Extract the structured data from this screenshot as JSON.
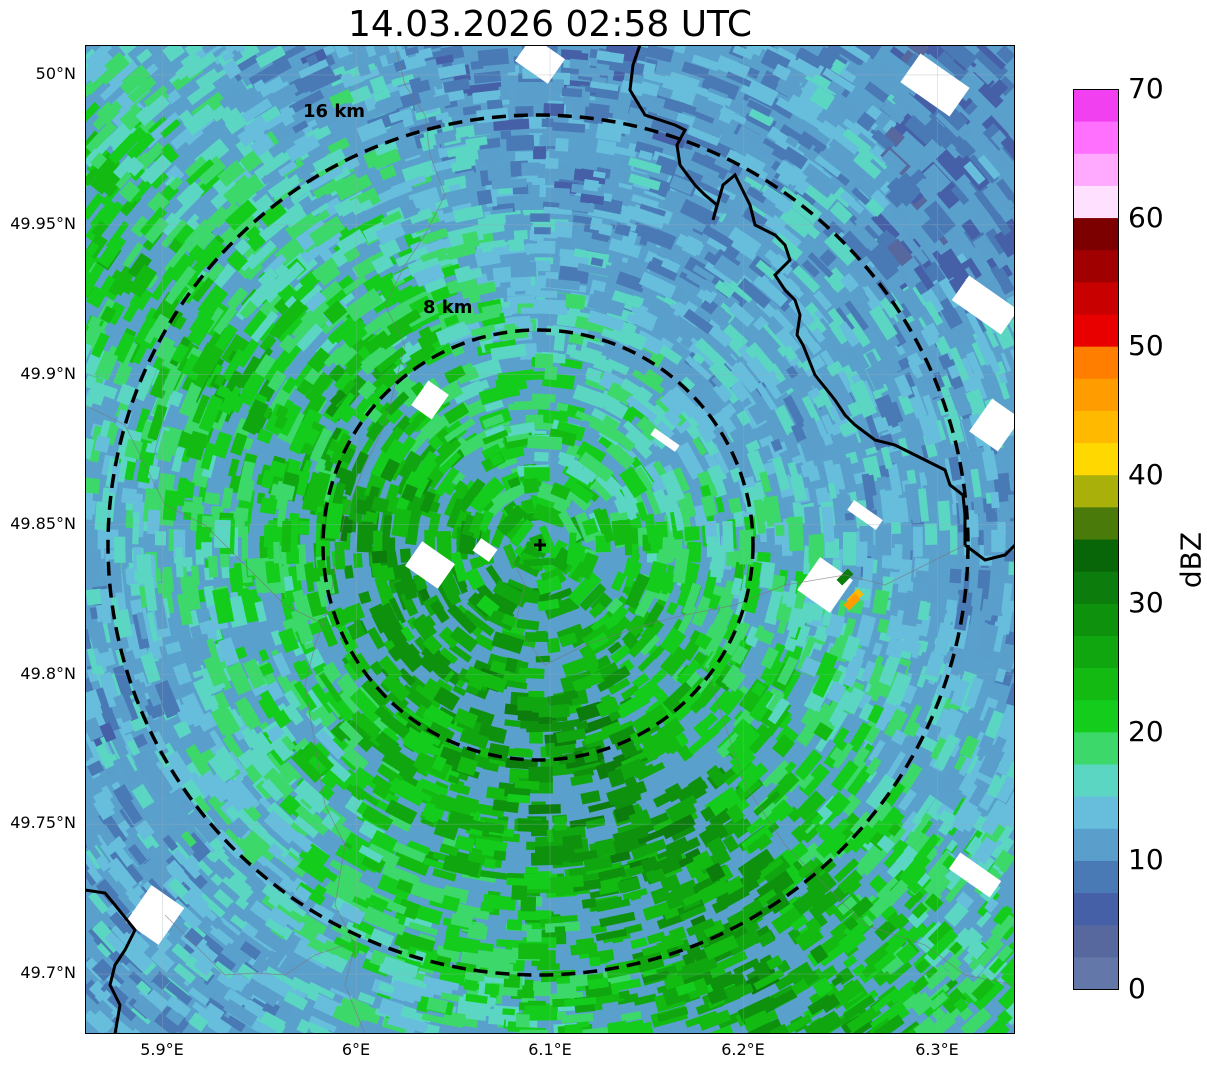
{
  "title": "14.03.2026 02:58 UTC",
  "map": {
    "lon_range": [
      5.86,
      6.34
    ],
    "lat_range": [
      49.68,
      50.01
    ],
    "radar_site": {
      "lon": 6.095,
      "lat": 49.843
    },
    "range_rings": [
      {
        "label": "8 km",
        "radius_km": 8
      },
      {
        "label": "16 km",
        "radius_km": 16
      }
    ],
    "lat_ticks": [
      {
        "label": "50°N",
        "value": 50.0
      },
      {
        "label": "49.95°N",
        "value": 49.95
      },
      {
        "label": "49.9°N",
        "value": 49.9
      },
      {
        "label": "49.85°N",
        "value": 49.85
      },
      {
        "label": "49.8°N",
        "value": 49.8
      },
      {
        "label": "49.75°N",
        "value": 49.75
      },
      {
        "label": "49.7°N",
        "value": 49.7
      }
    ],
    "lon_ticks": [
      {
        "label": "5.9°E",
        "value": 5.9
      },
      {
        "label": "6°E",
        "value": 6.0
      },
      {
        "label": "6.1°E",
        "value": 6.1
      },
      {
        "label": "6.2°E",
        "value": 6.2
      },
      {
        "label": "6.3°E",
        "value": 6.3
      }
    ],
    "grid": true
  },
  "colorbar": {
    "label": "dBZ",
    "min": 0,
    "max": 70,
    "ticks": [
      "0",
      "10",
      "20",
      "30",
      "40",
      "50",
      "60",
      "70"
    ],
    "colors": [
      "#6378a8",
      "#56689e",
      "#4660a8",
      "#4a7ab5",
      "#5a9fcc",
      "#66bedc",
      "#5ad6c3",
      "#3cd86a",
      "#14cc1c",
      "#12ba12",
      "#10a610",
      "#0e920e",
      "#0c7c0c",
      "#086608",
      "#4a7a0a",
      "#aab00a",
      "#ffd800",
      "#ffba00",
      "#ff9c00",
      "#ff7e00",
      "#e80000",
      "#c80000",
      "#a00000",
      "#7c0000",
      "#ffe0ff",
      "#ffaaff",
      "#ff70ff",
      "#f040f0"
    ]
  }
}
